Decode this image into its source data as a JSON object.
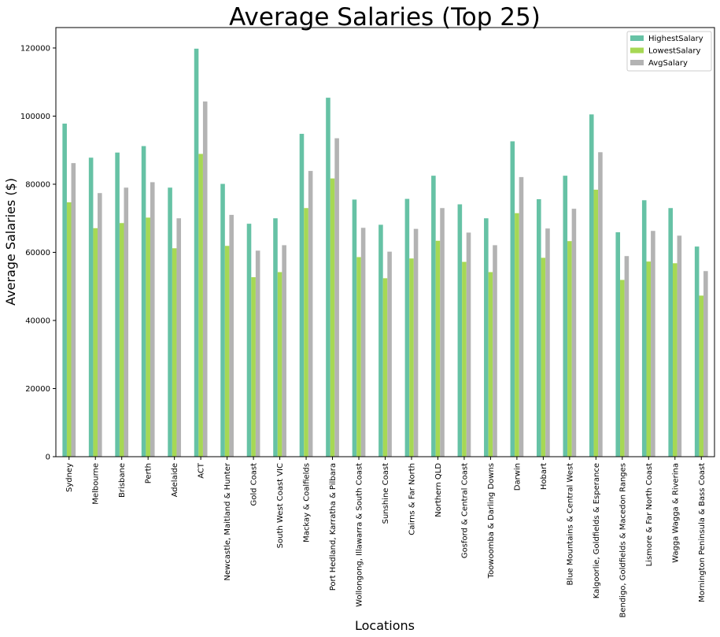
{
  "chart_data": {
    "type": "bar",
    "title": "Average Salaries (Top 25)",
    "xlabel": "Locations",
    "ylabel": "Average Salaries ($)",
    "ylim": [
      0,
      126000
    ],
    "yticks": [
      0,
      20000,
      40000,
      60000,
      80000,
      100000,
      120000
    ],
    "grid": false,
    "legend_position": "top-right",
    "categories": [
      "Sydney",
      "Melbourne",
      "Brisbane",
      "Perth",
      "Adelaide",
      "ACT",
      "Newcastle, Maitland & Hunter",
      "Gold Coast",
      "South West Coast VIC",
      "Mackay & Coalfields",
      "Port Hedland, Karratha & Pilbara",
      "Wollongong, Illawarra & South Coast",
      "Sunshine Coast",
      "Cairns & Far North",
      "Northern QLD",
      "Gosford & Central Coast",
      "Toowoomba & Darling Downs",
      "Darwin",
      "Hobart",
      "Blue Mountains & Central West",
      "Kalgoorlie, Goldfields & Esperance",
      "Bendigo, Goldfields & Macedon Ranges",
      "Lismore & Far North Coast",
      "Wagga Wagga & Riverina",
      "Mornington Peninsula & Bass Coast"
    ],
    "series": [
      {
        "name": "HighestSalary",
        "color": "#66c2a5",
        "values": [
          97800,
          87800,
          89300,
          91200,
          79000,
          119800,
          80100,
          68400,
          70000,
          94800,
          105400,
          75500,
          68100,
          75700,
          82500,
          74100,
          70000,
          92600,
          75600,
          82500,
          100500,
          65900,
          75300,
          73000,
          61700
        ]
      },
      {
        "name": "LowestSalary",
        "color": "#a6d854",
        "values": [
          74700,
          67100,
          68600,
          70200,
          61200,
          88900,
          61900,
          52700,
          54200,
          73000,
          81700,
          58600,
          52400,
          58200,
          63400,
          57200,
          54200,
          71500,
          58400,
          63300,
          78400,
          51900,
          57300,
          56800,
          47300
        ]
      },
      {
        "name": "AvgSalary",
        "color": "#b3b3b3",
        "values": [
          86200,
          77400,
          79000,
          80600,
          70000,
          104300,
          71000,
          60500,
          62100,
          83900,
          93500,
          67200,
          60200,
          66900,
          73000,
          65800,
          62100,
          82100,
          67000,
          72800,
          89400,
          58900,
          66300,
          64900,
          54500
        ]
      }
    ]
  }
}
